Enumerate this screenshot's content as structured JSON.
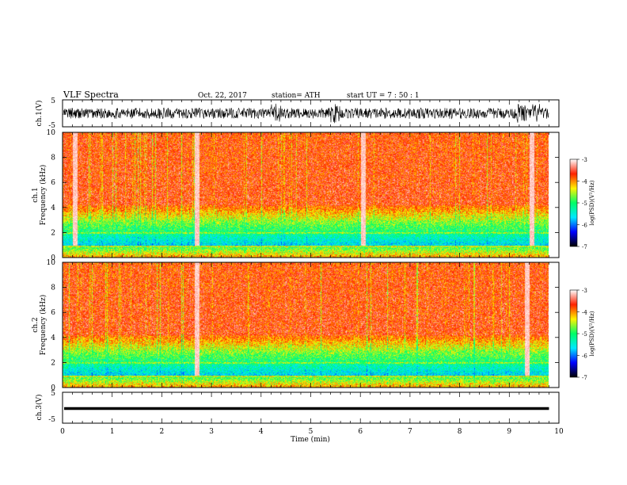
{
  "header": {
    "title": "VLF  Spectra",
    "date": "Oct. 22, 2017",
    "station": "station= ATH",
    "start": "start  UT  =   7  : 50 : 1"
  },
  "colors": {
    "stops": [
      "#000000",
      "#0000ff",
      "#00e8ff",
      "#00ff66",
      "#fff200",
      "#ff2200",
      "#ffffff"
    ],
    "trace": "#000000"
  },
  "chart_data": [
    {
      "type": "line",
      "name": "ch1-waveform",
      "ylabel": "ch.1(V)",
      "ylim": [
        -5,
        5
      ],
      "yticks": [
        "5",
        "-5"
      ],
      "amplitude_v": 2,
      "burst_times_min": [
        4.3,
        5.5,
        9.25,
        9.55
      ]
    },
    {
      "type": "heatmap",
      "name": "ch1-spectrogram",
      "ylabel_line1": "ch.1",
      "ylabel_line2": "Frequency  (kHz)",
      "ylim": [
        0,
        10
      ],
      "yticks": [
        "0",
        "2",
        "4",
        "6",
        "8",
        "10"
      ],
      "streak_times_min": [
        0.25,
        2.7,
        6.05,
        9.45
      ],
      "colorbar": {
        "label": "log(PSD)(V²/Hz)",
        "range": [
          -7,
          -3
        ],
        "ticks": [
          "-3",
          "-4",
          "-5",
          "-6",
          "-7"
        ]
      }
    },
    {
      "type": "heatmap",
      "name": "ch2-spectrogram",
      "ylabel_line1": "ch.2",
      "ylabel_line2": "Frequency  (kHz)",
      "ylim": [
        0,
        10
      ],
      "yticks": [
        "0",
        "2",
        "4",
        "6",
        "8",
        "10"
      ],
      "streak_times_min": [
        2.7,
        9.35
      ],
      "colorbar": {
        "label": "log(PSD)(V²/Hz)",
        "range": [
          -7,
          -3
        ],
        "ticks": [
          "-3",
          "-4",
          "-5",
          "-6",
          "-7"
        ]
      }
    },
    {
      "type": "line",
      "name": "ch3-waveform",
      "ylabel": "ch.3(V)",
      "ylim": [
        -5,
        5
      ],
      "yticks": [
        "5",
        "-5"
      ],
      "level_v": 0
    }
  ],
  "xaxis": {
    "label": "Time  (min)",
    "range": [
      0,
      10
    ],
    "ticks": [
      "0",
      "1",
      "2",
      "3",
      "4",
      "5",
      "6",
      "7",
      "8",
      "9",
      "10"
    ],
    "data_end_min": 9.8
  }
}
